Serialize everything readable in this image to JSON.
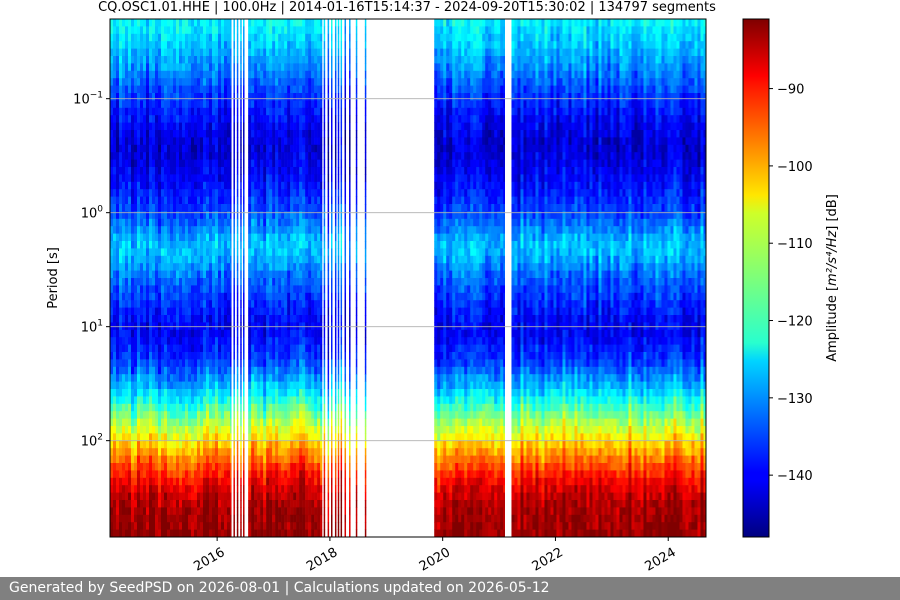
{
  "chart_data": {
    "type": "heatmap",
    "title": "CQ.OSC1.01.HHE | 100.0Hz | 2014-01-16T15:14:37 - 2024-09-20T15:30:02 | 134797 segments",
    "xlabel": "",
    "ylabel": "Period [s]",
    "y_scale": "log",
    "y_inverted": true,
    "xlim": [
      2014.1,
      2024.67
    ],
    "ylim": [
      0.02,
      700
    ],
    "x_ticks": [
      {
        "value": 2016,
        "label": "2016"
      },
      {
        "value": 2018,
        "label": "2018"
      },
      {
        "value": 2020,
        "label": "2020"
      },
      {
        "value": 2022,
        "label": "2022"
      },
      {
        "value": 2024,
        "label": "2024"
      }
    ],
    "y_ticks": [
      {
        "value": 0.1,
        "label": "10",
        "exp": "−1"
      },
      {
        "value": 1,
        "label": "10",
        "exp": "0"
      },
      {
        "value": 10,
        "label": "10",
        "exp": "1"
      },
      {
        "value": 100,
        "label": "10",
        "exp": "2"
      }
    ],
    "y_grid": true,
    "colormap": "jet",
    "colorbar": {
      "label_main": "Amplitude [",
      "label_unit": "m²/s⁴/Hz",
      "label_end": "] [dB]",
      "range": [
        -148,
        -81
      ],
      "ticks": [
        {
          "value": -90,
          "label": "−90"
        },
        {
          "value": -100,
          "label": "−100"
        },
        {
          "value": -110,
          "label": "−110"
        },
        {
          "value": -120,
          "label": "−120"
        },
        {
          "value": -130,
          "label": "−130"
        },
        {
          "value": -140,
          "label": "−140"
        }
      ]
    },
    "data_segments": [
      [
        2014.1,
        2016.25
      ],
      [
        2016.55,
        2017.86
      ],
      [
        2019.85,
        2021.1
      ],
      [
        2021.22,
        2024.67
      ]
    ],
    "sparse_traces": [
      2016.3,
      2016.36,
      2016.42,
      2016.47,
      2017.9,
      2017.97,
      2018.03,
      2018.1,
      2018.15,
      2018.2,
      2018.27,
      2018.35,
      2018.47,
      2018.63
    ],
    "spectrum_profile": [
      {
        "period": 0.02,
        "db": -123
      },
      {
        "period": 0.05,
        "db": -130
      },
      {
        "period": 0.1,
        "db": -137
      },
      {
        "period": 0.25,
        "db": -143
      },
      {
        "period": 0.5,
        "db": -140
      },
      {
        "period": 1.0,
        "db": -135
      },
      {
        "period": 2.0,
        "db": -126
      },
      {
        "period": 4.0,
        "db": -134
      },
      {
        "period": 10.0,
        "db": -141
      },
      {
        "period": 20.0,
        "db": -136
      },
      {
        "period": 40.0,
        "db": -124
      },
      {
        "period": 70.0,
        "db": -111
      },
      {
        "period": 100.0,
        "db": -104
      },
      {
        "period": 150.0,
        "db": -96
      },
      {
        "period": 220.0,
        "db": -89
      },
      {
        "period": 350.0,
        "db": -84
      },
      {
        "period": 700.0,
        "db": -82
      }
    ]
  },
  "footer": {
    "text": "Generated by SeedPSD on 2026-08-01 | Calculations updated on 2026-05-12"
  }
}
